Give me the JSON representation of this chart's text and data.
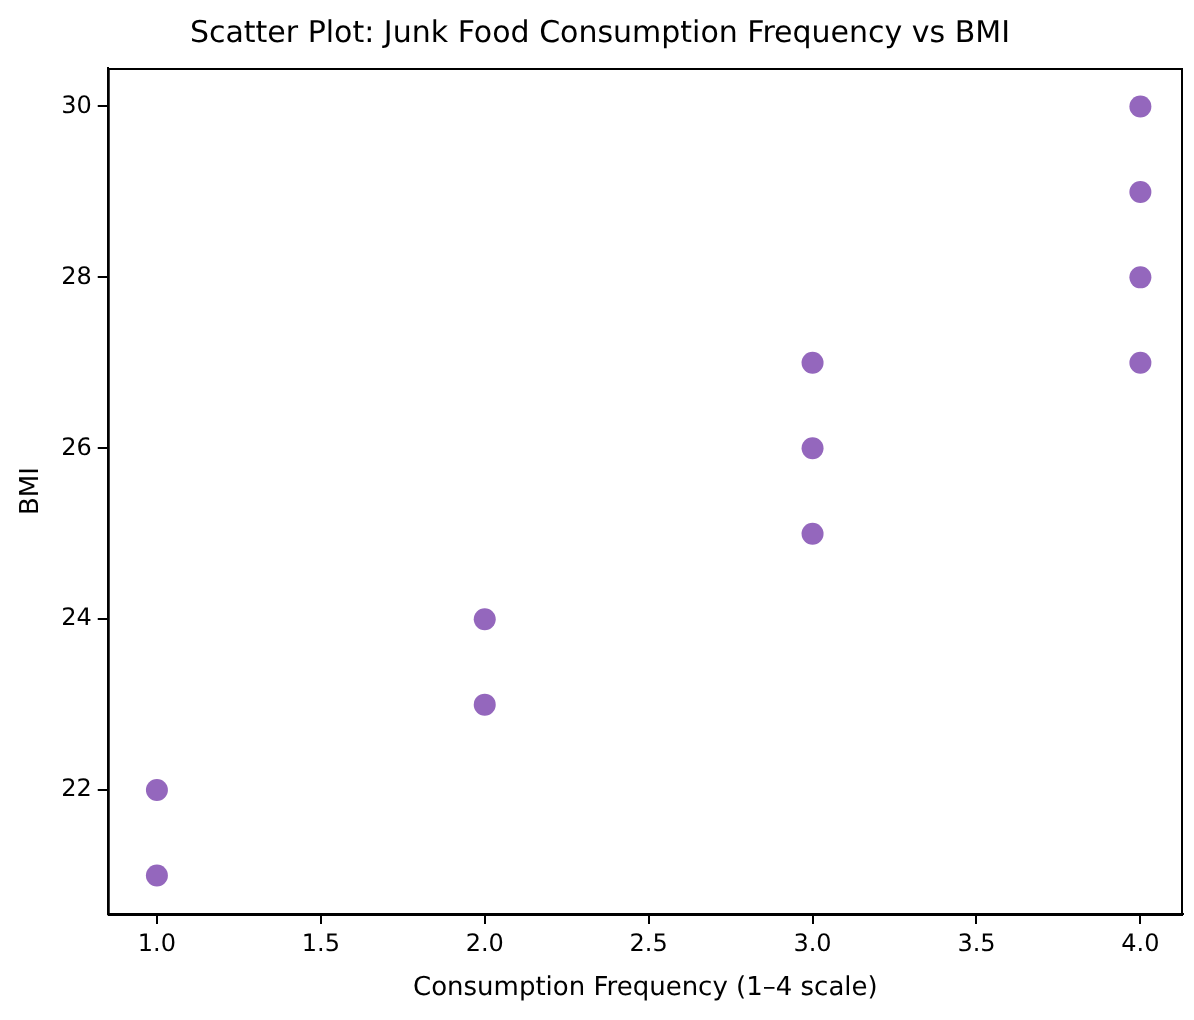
{
  "chart_data": {
    "type": "scatter",
    "title": "Scatter Plot: Junk Food Consumption Frequency vs BMI",
    "xlabel": "Consumption Frequency (1–4 scale)",
    "ylabel": "BMI",
    "x": [
      1,
      1,
      2,
      2,
      3,
      3,
      3,
      4,
      4,
      4,
      4
    ],
    "series": [
      {
        "color": "#9467bd",
        "values": [
          21,
          22,
          23,
          24,
          25,
          26,
          27,
          27,
          28,
          29,
          30
        ]
      }
    ],
    "xlim": [
      0.85,
      4.13
    ],
    "ylim": [
      20.55,
      30.45
    ],
    "xticks": [
      {
        "value": 1,
        "label": "1.0"
      },
      {
        "value": 1.5,
        "label": "1.5"
      },
      {
        "value": 2,
        "label": "2.0"
      },
      {
        "value": 2.5,
        "label": "2.5"
      },
      {
        "value": 3,
        "label": "3.0"
      },
      {
        "value": 3.5,
        "label": "3.5"
      },
      {
        "value": 4,
        "label": "4.0"
      }
    ],
    "yticks": [
      22,
      24,
      26,
      28,
      30
    ],
    "grid": false,
    "legend": false,
    "marker": "circle"
  }
}
